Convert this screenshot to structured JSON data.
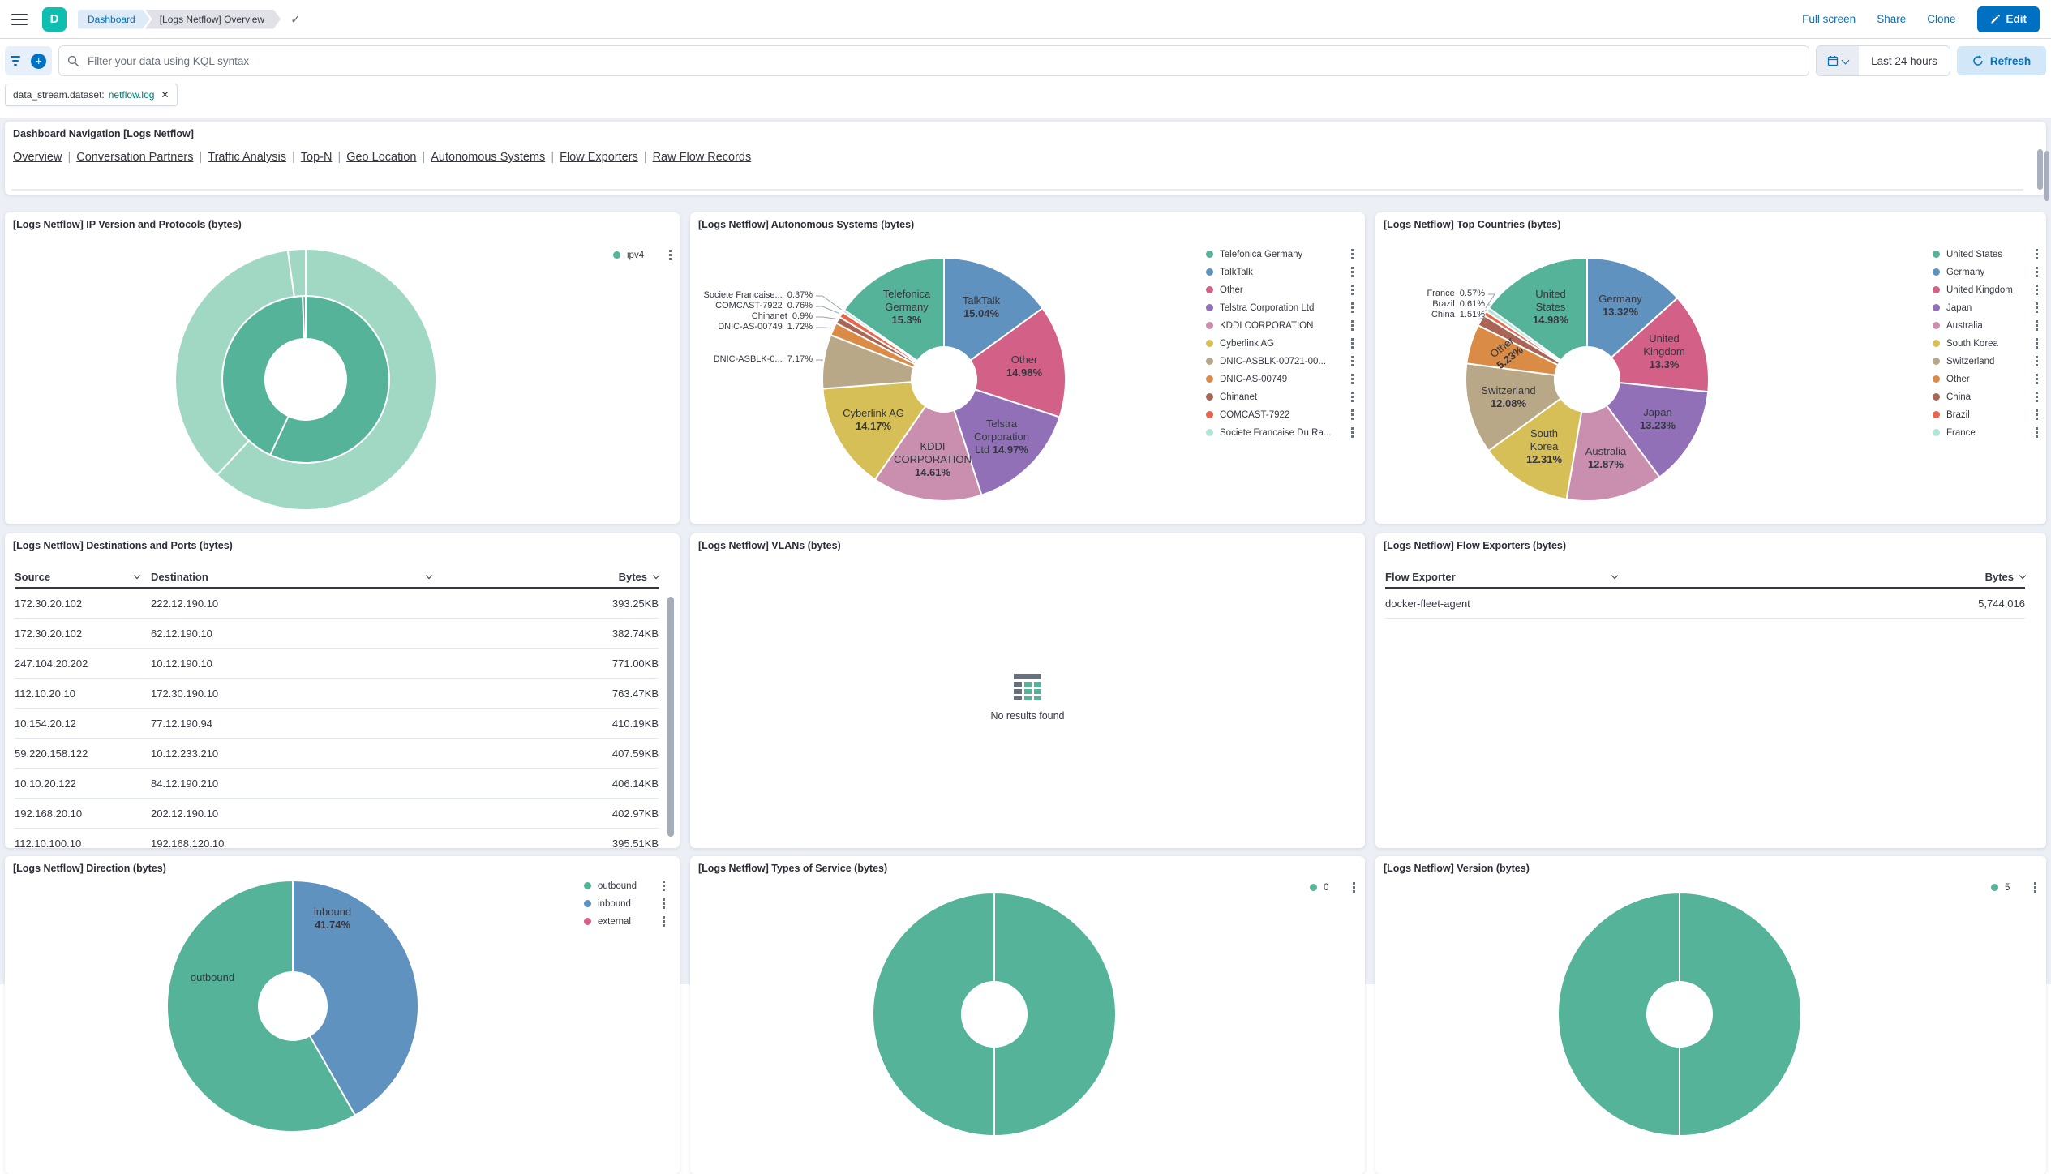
{
  "header": {
    "logo_letter": "D",
    "breadcrumbs": [
      "Dashboard",
      "[Logs Netflow] Overview"
    ],
    "actions": {
      "full_screen": "Full screen",
      "share": "Share",
      "clone": "Clone",
      "edit": "Edit"
    }
  },
  "query_bar": {
    "search_placeholder": "Filter your data using KQL syntax",
    "time_range": "Last 24 hours",
    "refresh_label": "Refresh",
    "filter_pill": {
      "field": "data_stream.dataset:",
      "value": "netflow.log"
    }
  },
  "nav_panel": {
    "title": "Dashboard Navigation [Logs Netflow]",
    "links": [
      "Overview",
      "Conversation Partners",
      "Traffic Analysis",
      "Top-N",
      "Geo Location",
      "Autonomous Systems",
      "Flow Exporters",
      "Raw Flow Records"
    ]
  },
  "panels": {
    "ip_version": {
      "title": "[Logs Netflow] IP Version and Protocols (bytes)"
    },
    "autonomous_systems": {
      "title": "[Logs Netflow] Autonomous Systems (bytes)"
    },
    "top_countries": {
      "title": "[Logs Netflow] Top Countries (bytes)"
    },
    "destinations": {
      "title": "[Logs Netflow] Destinations and Ports (bytes)"
    },
    "vlans": {
      "title": "[Logs Netflow] VLANs (bytes)",
      "empty_text": "No results found"
    },
    "flow_exporters": {
      "title": "[Logs Netflow] Flow Exporters (bytes)"
    },
    "direction": {
      "title": "[Logs Netflow] Direction (bytes)"
    },
    "types_of_service": {
      "title": "[Logs Netflow] Types of Service (bytes)"
    },
    "version": {
      "title": "[Logs Netflow] Version (bytes)"
    }
  },
  "tables": {
    "destinations": {
      "headers": [
        "Source",
        "Destination",
        "Bytes"
      ],
      "rows": [
        [
          "172.30.20.102",
          "222.12.190.10",
          "393.25KB"
        ],
        [
          "172.30.20.102",
          "62.12.190.10",
          "382.74KB"
        ],
        [
          "247.104.20.202",
          "10.12.190.10",
          "771.00KB"
        ],
        [
          "112.10.20.10",
          "172.30.190.10",
          "763.47KB"
        ],
        [
          "10.154.20.12",
          "77.12.190.94",
          "410.19KB"
        ],
        [
          "59.220.158.122",
          "10.12.233.210",
          "407.59KB"
        ],
        [
          "10.10.20.122",
          "84.12.190.210",
          "406.14KB"
        ],
        [
          "192.168.20.10",
          "202.12.190.10",
          "402.97KB"
        ],
        [
          "112.10.100.10",
          "192.168.120.10",
          "395.51KB"
        ]
      ]
    },
    "flow_exporters": {
      "headers": [
        "Flow Exporter",
        "Bytes"
      ],
      "rows": [
        [
          "docker-fleet-agent",
          "5,744,016"
        ]
      ]
    }
  },
  "chart_data": [
    {
      "id": "ip_version",
      "type": "sunburst",
      "title": "[Logs Netflow] IP Version and Protocols (bytes)",
      "legend": [
        {
          "label": "ipv4",
          "color": "#54B399"
        }
      ],
      "rings": [
        {
          "name": "ip-version-inner-ring",
          "color": "#54B399",
          "segments": [
            57.0,
            42.4,
            0.6
          ]
        },
        {
          "name": "protocols-outer-ring",
          "color": "#A0D8C4",
          "segments": [
            61.9,
            35.9,
            2.2
          ]
        }
      ],
      "note": "segment sizes estimated from arc angles; only legend label shown is ipv4"
    },
    {
      "id": "autonomous_systems",
      "type": "pie",
      "title": "[Logs Netflow] Autonomous Systems (bytes)",
      "slices": [
        {
          "name": "TalkTalk",
          "value": 15.04,
          "color": "#6092C0",
          "label_lines": [
            "TalkTalk",
            "|15.04%|"
          ]
        },
        {
          "name": "Other",
          "value": 14.98,
          "color": "#D36086",
          "label_lines": [
            "Other",
            "|14.98%|"
          ]
        },
        {
          "name": "Telstra Corporation Ltd",
          "value": 14.97,
          "color": "#9170B8",
          "label_lines": [
            "Telstra",
            "Corporation",
            "Ltd |14.97%|"
          ]
        },
        {
          "name": "KDDI CORPORATION",
          "value": 14.61,
          "color": "#CA8EAE",
          "label_lines": [
            "KDDI",
            "CORPORATION",
            "|14.61%|"
          ]
        },
        {
          "name": "Cyberlink AG",
          "value": 14.17,
          "color": "#D6BF57",
          "label_lines": [
            "Cyberlink AG",
            "|14.17%|"
          ]
        },
        {
          "name": "DNIC-ASBLK-00721-00...",
          "value": 7.17,
          "color": "#B9A888",
          "callout": "DNIC-ASBLK-0...  7.17%"
        },
        {
          "name": "DNIC-AS-00749",
          "value": 1.72,
          "color": "#DA8B45",
          "callout": "DNIC-AS-00749  1.72%"
        },
        {
          "name": "Chinanet",
          "value": 0.9,
          "color": "#AA6556",
          "callout": "Chinanet  0.9%"
        },
        {
          "name": "COMCAST-7922",
          "value": 0.76,
          "color": "#E7664C",
          "callout": "COMCAST-7922  0.76%"
        },
        {
          "name": "Societe Francaise Du Ra...",
          "value": 0.37,
          "color": "#B2E5D6",
          "callout": "Societe Francaise...  0.37%"
        },
        {
          "name": "Telefonica Germany",
          "value": 15.3,
          "color": "#54B399",
          "label_lines": [
            "Telefonica",
            "Germany",
            "|15.3%|"
          ]
        }
      ],
      "legend": [
        {
          "label": "Telefonica Germany",
          "color": "#54B399"
        },
        {
          "label": "TalkTalk",
          "color": "#6092C0"
        },
        {
          "label": "Other",
          "color": "#D36086"
        },
        {
          "label": "Telstra Corporation Ltd",
          "color": "#9170B8"
        },
        {
          "label": "KDDI CORPORATION",
          "color": "#CA8EAE"
        },
        {
          "label": "Cyberlink AG",
          "color": "#D6BF57"
        },
        {
          "label": "DNIC-ASBLK-00721-00...",
          "color": "#B9A888"
        },
        {
          "label": "DNIC-AS-00749",
          "color": "#DA8B45"
        },
        {
          "label": "Chinanet",
          "color": "#AA6556"
        },
        {
          "label": "COMCAST-7922",
          "color": "#E7664C"
        },
        {
          "label": "Societe Francaise Du Ra...",
          "color": "#B2E5D6"
        }
      ]
    },
    {
      "id": "top_countries",
      "type": "pie",
      "title": "[Logs Netflow] Top Countries (bytes)",
      "slices": [
        {
          "name": "Germany",
          "value": 13.32,
          "color": "#6092C0",
          "label_lines": [
            "Germany",
            "|13.32%|"
          ]
        },
        {
          "name": "United Kingdom",
          "value": 13.3,
          "color": "#D36086",
          "label_lines": [
            "United",
            "Kingdom",
            "|13.3%|"
          ]
        },
        {
          "name": "Japan",
          "value": 13.23,
          "color": "#9170B8",
          "label_lines": [
            "Japan",
            "|13.23%|"
          ]
        },
        {
          "name": "Australia",
          "value": 12.87,
          "color": "#CA8EAE",
          "label_lines": [
            "Australia",
            "|12.87%|"
          ]
        },
        {
          "name": "South Korea",
          "value": 12.31,
          "color": "#D6BF57",
          "label_lines": [
            "South",
            "Korea",
            "|12.31%|"
          ]
        },
        {
          "name": "Switzerland",
          "value": 12.08,
          "color": "#B9A888",
          "label_lines": [
            "Switzerland",
            "|12.08%|"
          ]
        },
        {
          "name": "Other",
          "value": 5.23,
          "color": "#DA8B45",
          "label_lines": [
            "Other",
            "|5.23%|"
          ]
        },
        {
          "name": "China",
          "value": 1.51,
          "color": "#AA6556",
          "callout": "China  1.51%"
        },
        {
          "name": "Brazil",
          "value": 0.61,
          "color": "#E7664C",
          "callout": "Brazil  0.61%"
        },
        {
          "name": "France",
          "value": 0.57,
          "color": "#B2E5D6",
          "callout": "France  0.57%"
        },
        {
          "name": "United States",
          "value": 14.98,
          "color": "#54B399",
          "label_lines": [
            "United",
            "States",
            "|14.98%|"
          ]
        }
      ],
      "legend": [
        {
          "label": "United States",
          "color": "#54B399"
        },
        {
          "label": "Germany",
          "color": "#6092C0"
        },
        {
          "label": "United Kingdom",
          "color": "#D36086"
        },
        {
          "label": "Japan",
          "color": "#9170B8"
        },
        {
          "label": "Australia",
          "color": "#CA8EAE"
        },
        {
          "label": "South Korea",
          "color": "#D6BF57"
        },
        {
          "label": "Switzerland",
          "color": "#B9A888"
        },
        {
          "label": "Other",
          "color": "#DA8B45"
        },
        {
          "label": "China",
          "color": "#AA6556"
        },
        {
          "label": "Brazil",
          "color": "#E7664C"
        },
        {
          "label": "France",
          "color": "#B2E5D6"
        }
      ]
    },
    {
      "id": "direction",
      "type": "pie",
      "title": "[Logs Netflow] Direction (bytes)",
      "slices": [
        {
          "name": "inbound",
          "value": 41.74,
          "color": "#6092C0",
          "label_lines": [
            "inbound",
            "|41.74%|"
          ]
        },
        {
          "name": "outbound",
          "value": 58.26,
          "color": "#54B399",
          "label_lines": [
            "outbound"
          ],
          "note": "value estimated, label percentage cut off at viewport edge"
        }
      ],
      "legend": [
        {
          "label": "outbound",
          "color": "#54B399"
        },
        {
          "label": "inbound",
          "color": "#6092C0"
        },
        {
          "label": "external",
          "color": "#D36086"
        }
      ]
    },
    {
      "id": "types_of_service",
      "type": "pie",
      "title": "[Logs Netflow] Types of Service (bytes)",
      "slices": [
        {
          "name": "0",
          "value": 100,
          "color": "#54B399"
        }
      ],
      "legend": [
        {
          "label": "0",
          "color": "#54B399"
        }
      ]
    },
    {
      "id": "version",
      "type": "pie",
      "title": "[Logs Netflow] Version (bytes)",
      "slices": [
        {
          "name": "5",
          "value": 100,
          "color": "#54B399"
        }
      ],
      "legend": [
        {
          "label": "5",
          "color": "#54B399"
        }
      ]
    }
  ]
}
